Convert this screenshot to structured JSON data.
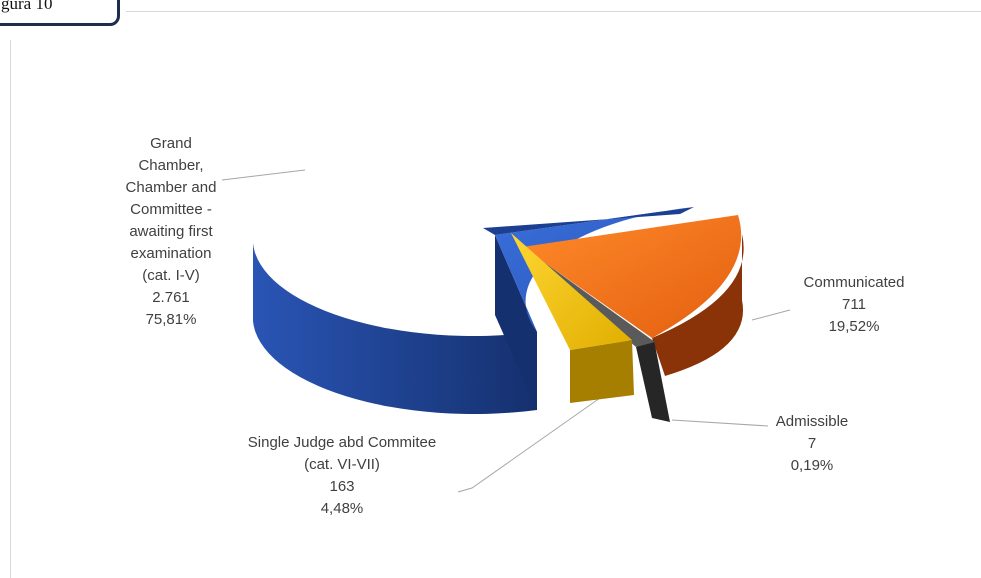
{
  "figure_label": "gura 10",
  "chart_data": {
    "type": "pie",
    "title": "",
    "slices": [
      {
        "label_lines": [
          "Grand",
          "Chamber,",
          "Chamber and",
          "Committee -",
          "awaiting first",
          "examination",
          "(cat. I-V)"
        ],
        "value": 2761,
        "value_text": "2.761",
        "percent_text": "75,81%",
        "color": "#2e5fc8",
        "side_color": "#1c3f91",
        "exploded": false
      },
      {
        "label_lines": [
          "Communicated"
        ],
        "value": 711,
        "value_text": "711",
        "percent_text": "19,52%",
        "color": "#f3731c",
        "side_color": "#9a3a0a",
        "exploded": true
      },
      {
        "label_lines": [
          "Admissible"
        ],
        "value": 7,
        "value_text": "7",
        "percent_text": "0,19%",
        "color": "#4d4d4d",
        "side_color": "#262626",
        "exploded": true
      },
      {
        "label_lines": [
          "Single Judge abd Commitee",
          "(cat. VI-VII)"
        ],
        "value": 163,
        "value_text": "163",
        "percent_text": "4,48%",
        "color": "#f5c400",
        "side_color": "#a77f00",
        "exploded": true
      }
    ]
  }
}
